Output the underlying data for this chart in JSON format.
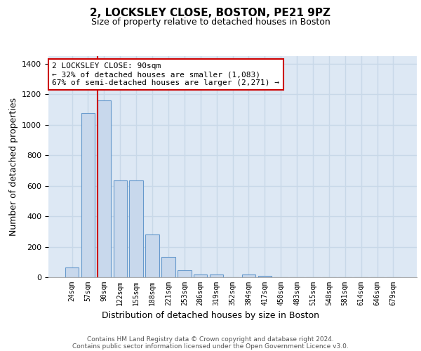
{
  "title1": "2, LOCKSLEY CLOSE, BOSTON, PE21 9PZ",
  "title2": "Size of property relative to detached houses in Boston",
  "xlabel": "Distribution of detached houses by size in Boston",
  "ylabel": "Number of detached properties",
  "categories": [
    "24sqm",
    "57sqm",
    "90sqm",
    "122sqm",
    "155sqm",
    "188sqm",
    "221sqm",
    "253sqm",
    "286sqm",
    "319sqm",
    "352sqm",
    "384sqm",
    "417sqm",
    "450sqm",
    "483sqm",
    "515sqm",
    "548sqm",
    "581sqm",
    "614sqm",
    "646sqm",
    "679sqm"
  ],
  "values": [
    65,
    1075,
    1160,
    635,
    635,
    280,
    135,
    45,
    20,
    20,
    0,
    20,
    10,
    0,
    0,
    0,
    0,
    0,
    0,
    0,
    0
  ],
  "bar_color": "#c8d8ec",
  "bar_edge_color": "#6699cc",
  "vline_x_index": 2,
  "vline_color": "#cc0000",
  "ylim": [
    0,
    1450
  ],
  "yticks": [
    0,
    200,
    400,
    600,
    800,
    1000,
    1200,
    1400
  ],
  "annotation_text": "2 LOCKSLEY CLOSE: 90sqm\n← 32% of detached houses are smaller (1,083)\n67% of semi-detached houses are larger (2,271) →",
  "annotation_box_facecolor": "#ffffff",
  "annotation_box_edgecolor": "#cc0000",
  "footer1": "Contains HM Land Registry data © Crown copyright and database right 2024.",
  "footer2": "Contains public sector information licensed under the Open Government Licence v3.0.",
  "grid_color": "#c8d8e8",
  "background_color": "#dde8f4",
  "title1_fontsize": 11,
  "title2_fontsize": 9,
  "ylabel_fontsize": 9,
  "xlabel_fontsize": 9,
  "tick_fontsize": 8,
  "xtick_fontsize": 7,
  "annotation_fontsize": 8
}
